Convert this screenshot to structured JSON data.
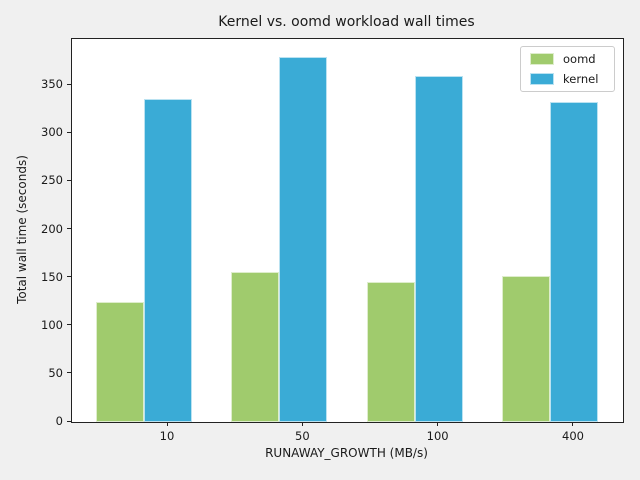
{
  "window": {
    "figure_background": "#f0f0f0",
    "plot_background": "#ffffff"
  },
  "chart_data": {
    "type": "bar",
    "title": "Kernel vs. oomd workload wall times",
    "xlabel": "RUNAWAY_GROWTH (MB/s)",
    "ylabel": "Total wall time (seconds)",
    "categories": [
      "10",
      "50",
      "100",
      "400"
    ],
    "series": [
      {
        "name": "oomd",
        "color": "#a0cb6d",
        "values": [
          125,
          156,
          146,
          152
        ]
      },
      {
        "name": "kernel",
        "color": "#3aabd6",
        "values": [
          336,
          379,
          360,
          333
        ]
      }
    ],
    "yticks": [
      0,
      50,
      100,
      150,
      200,
      250,
      300,
      350
    ],
    "ylim": [
      0,
      398
    ],
    "grid": false,
    "legend_position": "upper right",
    "legend_entries": [
      "oomd",
      "kernel"
    ]
  }
}
